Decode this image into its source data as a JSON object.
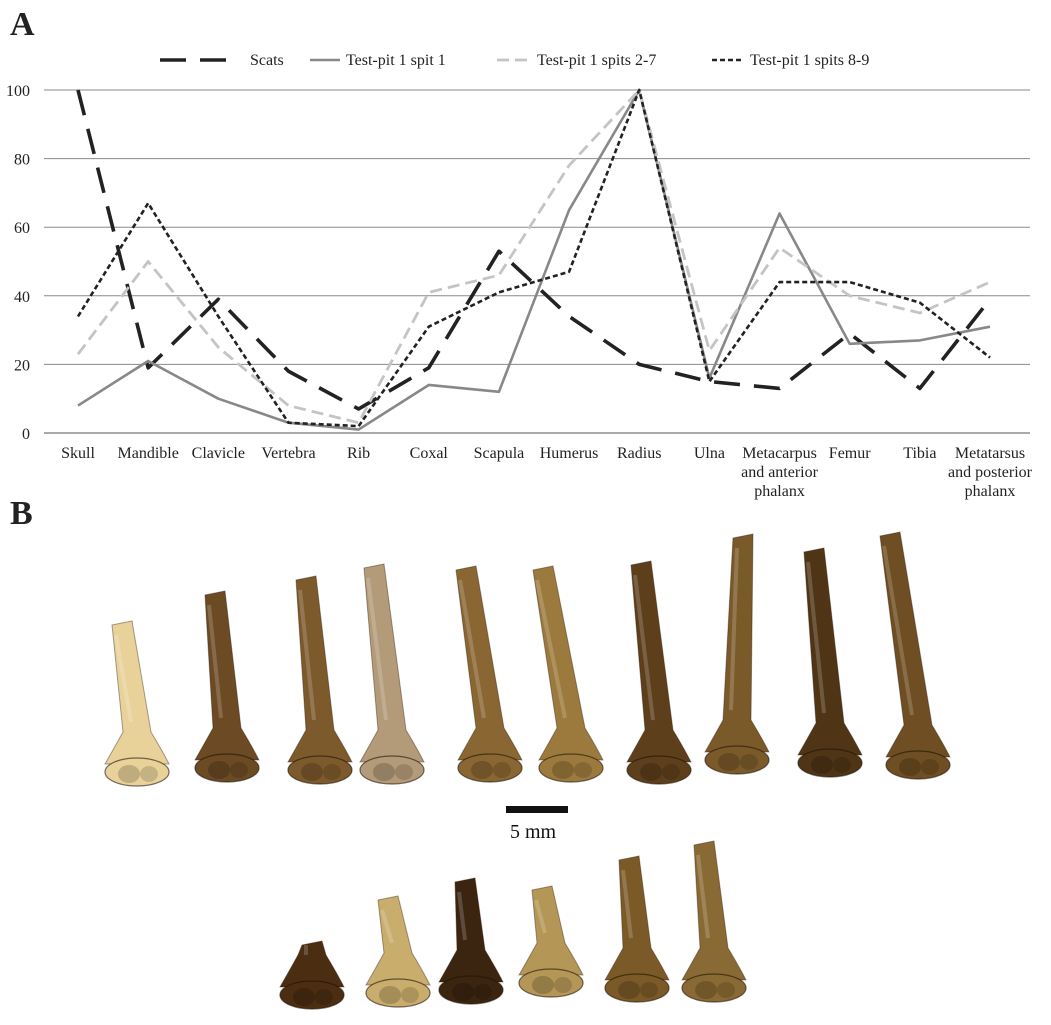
{
  "figure": {
    "panel_a_label": "A",
    "panel_b_label": "B",
    "scale_bar_label": "5 mm"
  },
  "chart_data": {
    "type": "line",
    "title": "",
    "xlabel": "",
    "ylabel": "",
    "ylim": [
      0,
      100
    ],
    "y_ticks": [
      0,
      20,
      40,
      60,
      80,
      100
    ],
    "grid": "horizontal",
    "legend_position": "top",
    "categories": [
      [
        "Skull"
      ],
      [
        "Mandible"
      ],
      [
        "Clavicle"
      ],
      [
        "Vertebra"
      ],
      [
        "Rib"
      ],
      [
        "Coxal"
      ],
      [
        "Scapula"
      ],
      [
        "Humerus"
      ],
      [
        "Radius"
      ],
      [
        "Ulna"
      ],
      [
        "Metacarpus",
        "and anterior",
        "phalanx"
      ],
      [
        "Femur"
      ],
      [
        "Tibia"
      ],
      [
        "Metatarsus",
        "and posterior",
        "phalanx"
      ]
    ],
    "series": [
      {
        "name": "Scats",
        "color": "#222222",
        "style": "long-dash",
        "values": [
          100,
          19,
          39,
          18,
          7,
          19,
          53,
          34,
          20,
          15,
          13,
          29,
          13,
          39
        ]
      },
      {
        "name": "Test-pit 1 spit 1",
        "color": "#888888",
        "style": "solid",
        "values": [
          8,
          21,
          10,
          3,
          1,
          14,
          12,
          65,
          100,
          16,
          64,
          26,
          27,
          31
        ]
      },
      {
        "name": "Test-pit 1 spits 2-7",
        "color": "#c4c4c4",
        "style": "dash",
        "values": [
          23,
          50,
          25,
          8,
          3,
          41,
          46,
          78,
          100,
          24,
          54,
          40,
          35,
          44
        ]
      },
      {
        "name": "Test-pit 1 spits 8-9",
        "color": "#222222",
        "style": "short-dash",
        "values": [
          34,
          67,
          34,
          3,
          2,
          31,
          41,
          47,
          100,
          15,
          44,
          44,
          38,
          22
        ]
      }
    ]
  },
  "photo": {
    "subject": "distal humeri",
    "row1_count": 10,
    "row2_count": 6,
    "bone_colors": [
      "#e8d29a",
      "#6b4a24",
      "#7d5a2c",
      "#b39a78",
      "#8a6632",
      "#9c7a3e",
      "#5e3f1c",
      "#7b5a2a",
      "#4f3516",
      "#6e4e22",
      "#4b2d12",
      "#c9ad6c",
      "#3b2410",
      "#b49656",
      "#7c5a28",
      "#8a6a34"
    ]
  }
}
